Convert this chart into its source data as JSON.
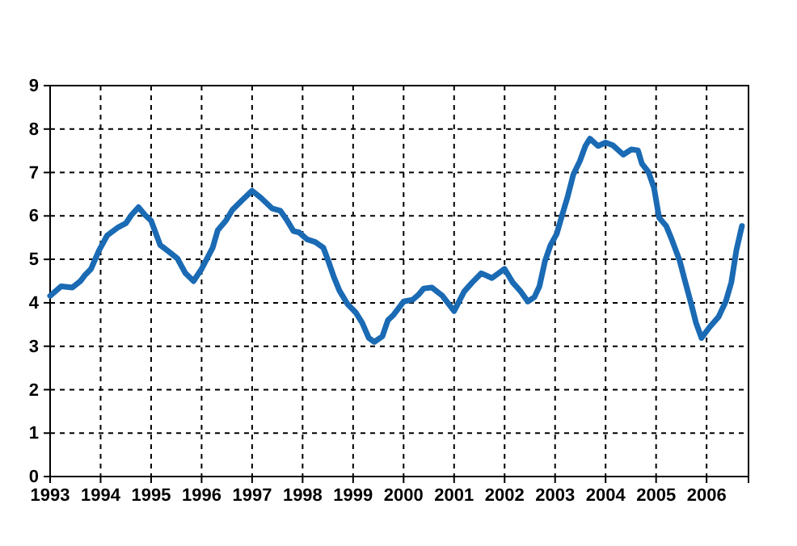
{
  "chart_data": {
    "type": "line",
    "xlim": [
      1993,
      2006.83
    ],
    "xticks": [
      1993,
      1994,
      1995,
      1996,
      1997,
      1998,
      1999,
      2000,
      2001,
      2002,
      2003,
      2004,
      2005,
      2006
    ],
    "ylim": [
      0,
      9
    ],
    "yticks": [
      0,
      1,
      2,
      3,
      4,
      5,
      6,
      7,
      8,
      9
    ],
    "grid": true,
    "line_style": "solid",
    "marker": "none",
    "series": [
      {
        "color": "#1a6ab4",
        "x": [
          1993.0,
          1993.22,
          1993.44,
          1993.6,
          1993.7,
          1993.81,
          1993.97,
          1994.13,
          1994.35,
          1994.5,
          1994.61,
          1994.75,
          1994.88,
          1995.0,
          1995.18,
          1995.36,
          1995.52,
          1995.68,
          1995.84,
          1996.0,
          1996.22,
          1996.32,
          1996.48,
          1996.61,
          1996.8,
          1997.0,
          1997.18,
          1997.4,
          1997.56,
          1997.68,
          1997.82,
          1997.93,
          1998.09,
          1998.25,
          1998.41,
          1998.51,
          1998.62,
          1998.73,
          1998.89,
          1999.05,
          1999.18,
          1999.31,
          1999.42,
          1999.58,
          1999.69,
          1999.8,
          2000.0,
          2000.18,
          2000.29,
          2000.4,
          2000.56,
          2000.77,
          2001.0,
          2001.2,
          2001.36,
          2001.54,
          2001.75,
          2002.0,
          2002.16,
          2002.32,
          2002.46,
          2002.59,
          2002.69,
          2002.8,
          2002.91,
          2003.03,
          2003.14,
          2003.25,
          2003.36,
          2003.49,
          2003.6,
          2003.69,
          2003.85,
          2004.0,
          2004.14,
          2004.35,
          2004.51,
          2004.64,
          2004.72,
          2004.85,
          2004.96,
          2005.06,
          2005.2,
          2005.31,
          2005.47,
          2005.58,
          2005.71,
          2005.79,
          2005.9,
          2006.06,
          2006.24,
          2006.38,
          2006.49,
          2006.59,
          2006.7
        ],
        "values": [
          4.16,
          4.38,
          4.35,
          4.5,
          4.65,
          4.78,
          5.21,
          5.55,
          5.74,
          5.83,
          6.02,
          6.2,
          6.02,
          5.89,
          5.33,
          5.17,
          5.02,
          4.68,
          4.5,
          4.78,
          5.27,
          5.67,
          5.89,
          6.14,
          6.36,
          6.58,
          6.41,
          6.17,
          6.12,
          5.92,
          5.65,
          5.62,
          5.46,
          5.4,
          5.27,
          4.96,
          4.59,
          4.28,
          3.97,
          3.78,
          3.54,
          3.19,
          3.1,
          3.23,
          3.6,
          3.72,
          4.03,
          4.07,
          4.18,
          4.33,
          4.35,
          4.16,
          3.81,
          4.26,
          4.47,
          4.68,
          4.57,
          4.78,
          4.47,
          4.26,
          4.03,
          4.13,
          4.38,
          4.96,
          5.33,
          5.58,
          6.02,
          6.45,
          6.95,
          7.26,
          7.61,
          7.78,
          7.61,
          7.69,
          7.63,
          7.41,
          7.53,
          7.51,
          7.2,
          7.01,
          6.64,
          5.96,
          5.77,
          5.46,
          4.96,
          4.47,
          3.91,
          3.54,
          3.19,
          3.44,
          3.68,
          4.03,
          4.47,
          5.21,
          5.77
        ]
      }
    ]
  }
}
